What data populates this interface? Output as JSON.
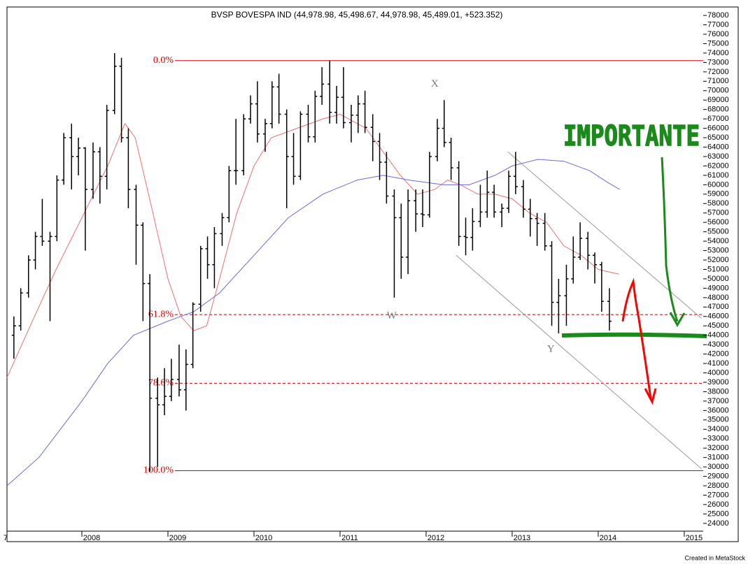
{
  "chart_data": {
    "type": "ohlc",
    "title": "BVSP BOVESPA IND (44,978.98, 45,498.67, 44,978.98, 45,489.01, +523.352)",
    "footer": "Created in MetaStock",
    "xlim": [
      2007.13,
      2015.22
    ],
    "ylim": [
      22950,
      78750
    ],
    "xticks": [
      {
        "value": 2007,
        "label": "7"
      },
      2008,
      2009,
      2010,
      2011,
      2012,
      2013,
      2014,
      {
        "value": 2015,
        "label": "2015"
      }
    ],
    "yticks": [
      24000,
      25000,
      26000,
      27000,
      28000,
      29000,
      30000,
      31000,
      32000,
      33000,
      34000,
      35000,
      36000,
      37000,
      38000,
      39000,
      40000,
      41000,
      42000,
      43000,
      44000,
      45000,
      46000,
      47000,
      48000,
      49000,
      50000,
      51000,
      52000,
      53000,
      54000,
      55000,
      56000,
      57000,
      58000,
      59000,
      60000,
      61000,
      62000,
      63000,
      64000,
      65000,
      66000,
      67000,
      68000,
      69000,
      70000,
      71000,
      72000,
      73000,
      74000,
      75000,
      76000,
      77000,
      78000
    ],
    "color": "#000000",
    "x": [
      2007.21,
      2007.29,
      2007.38,
      2007.46,
      2007.54,
      2007.63,
      2007.71,
      2007.79,
      2007.88,
      2007.96,
      2008.04,
      2008.13,
      2008.21,
      2008.29,
      2008.38,
      2008.46,
      2008.54,
      2008.63,
      2008.71,
      2008.79,
      2008.88,
      2008.96,
      2009.04,
      2009.13,
      2009.21,
      2009.29,
      2009.38,
      2009.46,
      2009.54,
      2009.63,
      2009.71,
      2009.79,
      2009.88,
      2009.96,
      2010.04,
      2010.13,
      2010.21,
      2010.29,
      2010.38,
      2010.46,
      2010.54,
      2010.63,
      2010.71,
      2010.79,
      2010.88,
      2010.96,
      2011.04,
      2011.13,
      2011.21,
      2011.29,
      2011.38,
      2011.46,
      2011.54,
      2011.63,
      2011.71,
      2011.79,
      2011.88,
      2011.96,
      2012.04,
      2012.13,
      2012.21,
      2012.29,
      2012.38,
      2012.46,
      2012.54,
      2012.63,
      2012.71,
      2012.79,
      2012.88,
      2012.96,
      2013.04,
      2013.13,
      2013.21,
      2013.29,
      2013.38,
      2013.46,
      2013.54,
      2013.63,
      2013.71,
      2013.79,
      2013.88,
      2013.96,
      2014.04,
      2014.13
    ],
    "open": [
      44000,
      45000,
      48500,
      52000,
      54500,
      54000,
      54500,
      60500,
      65000,
      63000,
      63900,
      59500,
      63500,
      60900,
      67900,
      72600,
      65000,
      59500,
      55700,
      49500,
      37300,
      36600,
      37500,
      39300,
      38200,
      40900,
      47300,
      53200,
      51500,
      54800,
      56500,
      61500,
      61500,
      67000,
      68600,
      65400,
      66500,
      70400,
      67500,
      63000,
      60900,
      67500,
      65100,
      69400,
      70700,
      67700,
      69300,
      66600,
      67400,
      68600,
      66100,
      64600,
      62400,
      58800,
      56500,
      52300,
      58300,
      56900,
      56800,
      63000,
      66000,
      64500,
      61800,
      54500,
      54400,
      56100,
      57100,
      59200,
      57100,
      57500,
      60900,
      59800,
      57400,
      56400,
      55900,
      53500,
      47500,
      48200,
      50000,
      52300,
      54300,
      52500,
      51500,
      47600
    ],
    "high": [
      46000,
      49000,
      52500,
      55000,
      58500,
      55000,
      61000,
      65500,
      66500,
      65000,
      64000,
      64500,
      64000,
      68500,
      74000,
      73500,
      66000,
      60000,
      56000,
      50500,
      39500,
      40500,
      41500,
      43000,
      42500,
      47500,
      53500,
      54500,
      55500,
      57000,
      62000,
      67000,
      67500,
      69500,
      71000,
      67000,
      71000,
      71800,
      68000,
      65500,
      67800,
      68500,
      70000,
      72500,
      73200,
      70500,
      72500,
      68500,
      69500,
      70000,
      67500,
      65500,
      63500,
      59500,
      58000,
      59500,
      59500,
      59500,
      63500,
      67000,
      69000,
      65000,
      62500,
      56500,
      57500,
      60000,
      61500,
      60000,
      58000,
      61500,
      63500,
      60500,
      58500,
      57000,
      57000,
      54000,
      50000,
      51500,
      54500,
      56000,
      55000,
      52800,
      51800,
      49000
    ],
    "low": [
      41500,
      44500,
      48000,
      51000,
      53500,
      45500,
      54000,
      60000,
      59500,
      61000,
      53000,
      58500,
      58000,
      59500,
      67500,
      64500,
      57500,
      51500,
      45500,
      29500,
      30000,
      35500,
      37000,
      37500,
      36000,
      40500,
      46500,
      50000,
      49000,
      53500,
      56000,
      60000,
      61000,
      66500,
      64500,
      63500,
      66000,
      66500,
      57500,
      60000,
      60500,
      64500,
      64500,
      68500,
      66500,
      66500,
      66000,
      64500,
      65500,
      65500,
      62500,
      60500,
      58000,
      48000,
      50000,
      50500,
      55000,
      55500,
      56500,
      62500,
      64000,
      60500,
      53500,
      52500,
      53000,
      55500,
      56500,
      56500,
      55500,
      57000,
      59000,
      56500,
      54500,
      53500,
      53000,
      45000,
      44200,
      45000,
      49500,
      52000,
      51000,
      49500,
      46500,
      44500
    ],
    "close": [
      45000,
      48500,
      52000,
      54500,
      54000,
      54500,
      60500,
      65000,
      63000,
      63900,
      59500,
      63500,
      60900,
      67900,
      72600,
      65000,
      59500,
      55700,
      49500,
      37300,
      36600,
      37500,
      39300,
      38200,
      40900,
      47300,
      53200,
      51500,
      54800,
      56500,
      61500,
      61500,
      67000,
      68600,
      65400,
      66500,
      70400,
      67500,
      63000,
      60900,
      67500,
      65100,
      69400,
      70700,
      67700,
      69300,
      66600,
      67400,
      68600,
      66100,
      64600,
      62400,
      58800,
      56500,
      52300,
      58300,
      56900,
      56800,
      63000,
      66000,
      64500,
      61800,
      54500,
      54400,
      56100,
      57100,
      59200,
      57100,
      57500,
      60900,
      59800,
      57400,
      56400,
      55900,
      53500,
      47500,
      48200,
      50000,
      52300,
      54300,
      52500,
      51500,
      47600,
      45489
    ],
    "moving_averages": [
      {
        "color": "#f07070",
        "x": [
          2007.13,
          2007.4,
          2007.7,
          2008.0,
          2008.3,
          2008.5,
          2008.62,
          2008.8,
          2009.0,
          2009.15,
          2009.3,
          2009.45,
          2009.6,
          2009.8,
          2010.0,
          2010.2,
          2010.5,
          2010.8,
          2011.0,
          2011.3,
          2011.5,
          2011.7,
          2011.9,
          2012.1,
          2012.25,
          2012.4,
          2012.6,
          2012.8,
          2013.0,
          2013.2,
          2013.4,
          2013.6,
          2013.8,
          2014.0,
          2014.24
        ],
        "values": [
          39500,
          45000,
          51000,
          56500,
          62000,
          66500,
          65000,
          58000,
          50000,
          46000,
          44500,
          45000,
          50000,
          57000,
          62000,
          65000,
          66000,
          67000,
          67500,
          66000,
          63500,
          61000,
          59000,
          59500,
          60500,
          60000,
          59000,
          59000,
          58500,
          57000,
          56000,
          53500,
          52500,
          51000,
          50500
        ]
      },
      {
        "color": "#6a6ae0",
        "x": [
          2007.13,
          2007.5,
          2008.0,
          2008.3,
          2008.6,
          2009.0,
          2009.3,
          2009.6,
          2010.0,
          2010.4,
          2010.8,
          2011.2,
          2011.5,
          2011.8,
          2012.2,
          2012.5,
          2012.8,
          2013.0,
          2013.3,
          2013.6,
          2013.9,
          2014.1,
          2014.25
        ],
        "values": [
          28000,
          31000,
          37000,
          41000,
          44000,
          45500,
          46500,
          48500,
          52500,
          56500,
          59000,
          60500,
          61000,
          60500,
          60000,
          60000,
          61000,
          62000,
          62700,
          62500,
          61500,
          60300,
          59500
        ]
      }
    ],
    "trendlines": [
      {
        "x": [
          2012.95,
          2015.2
        ],
        "values": [
          63500,
          45800
        ]
      },
      {
        "x": [
          2012.35,
          2015.2
        ],
        "values": [
          52500,
          29800
        ]
      }
    ],
    "fib_levels": [
      {
        "label": "0.0%",
        "value": 73200,
        "style": "solid"
      },
      {
        "label": "61.8%",
        "value": 46200,
        "style": "dashed"
      },
      {
        "label": "78.6%",
        "value": 38900,
        "style": "dashed"
      },
      {
        "label": "100.0%",
        "value": 29600,
        "style": "solid"
      }
    ],
    "annotations": [
      {
        "text": "X",
        "x": 2012.1,
        "y": 70700
      },
      {
        "text": "W",
        "x": 2011.6,
        "y": 46000
      },
      {
        "text": "Y",
        "x": 2013.45,
        "y": 42500
      }
    ],
    "note": {
      "text": "IMPORTANTE",
      "color": "#1a8a1a"
    }
  }
}
